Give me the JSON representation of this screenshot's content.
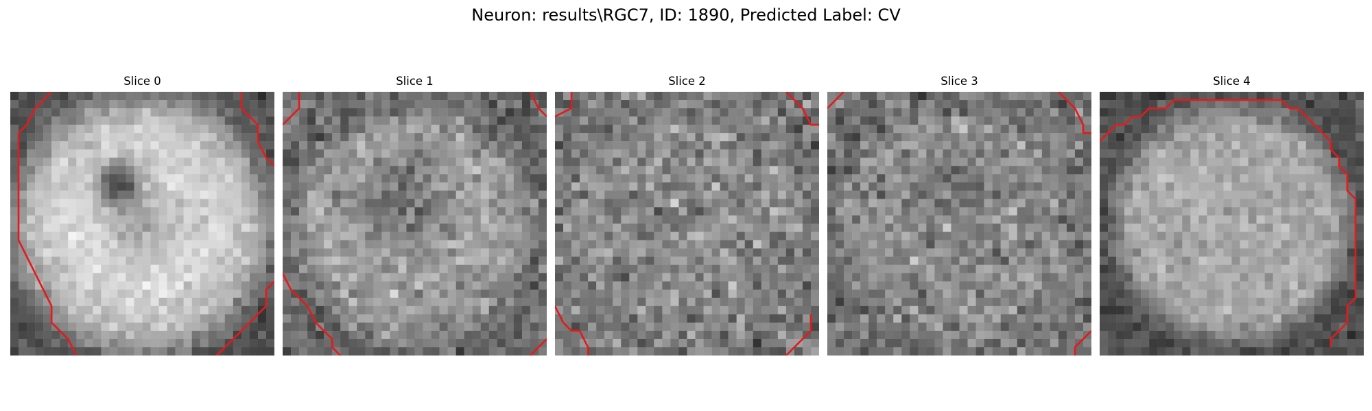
{
  "figure": {
    "title": "Neuron: results\\RGC7, ID: 1890, Predicted Label: CV",
    "contour_color": "#e41a1c",
    "colormap": "gray",
    "grid_size": 32
  },
  "panels": [
    {
      "title": "Slice 0"
    },
    {
      "title": "Slice 1"
    },
    {
      "title": "Slice 2"
    },
    {
      "title": "Slice 3"
    },
    {
      "title": "Slice 4"
    }
  ]
}
